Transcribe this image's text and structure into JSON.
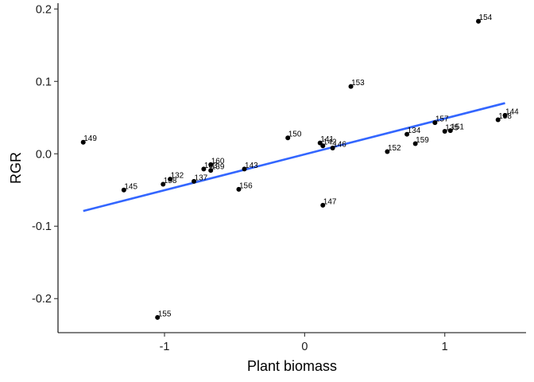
{
  "chart_data": {
    "type": "scatter",
    "title": "",
    "xlabel": "Plant biomass",
    "ylabel": "RGR",
    "xlim": [
      -1.76,
      1.58
    ],
    "ylim": [
      -0.247,
      0.208
    ],
    "x_ticks": [
      -1,
      0,
      1
    ],
    "y_ticks": [
      -0.2,
      -0.1,
      0.0,
      0.1,
      0.2
    ],
    "x_tick_labels": [
      "-1",
      "0",
      "1"
    ],
    "y_tick_labels": [
      "-0.2",
      "-0.1",
      "0.0",
      "0.1",
      "0.2"
    ],
    "grid": false,
    "legend": "none",
    "points": [
      {
        "label": "154",
        "x": 1.24,
        "y": 0.183
      },
      {
        "label": "153",
        "x": 0.33,
        "y": 0.093
      },
      {
        "label": "149",
        "x": -1.58,
        "y": 0.016
      },
      {
        "label": "150",
        "x": -0.12,
        "y": 0.022
      },
      {
        "label": "141",
        "x": 0.11,
        "y": 0.015
      },
      {
        "label": "142",
        "x": 0.13,
        "y": 0.011
      },
      {
        "label": "146",
        "x": 0.2,
        "y": 0.008
      },
      {
        "label": "134",
        "x": 0.73,
        "y": 0.027
      },
      {
        "label": "152",
        "x": 0.59,
        "y": 0.003
      },
      {
        "label": "159",
        "x": 0.79,
        "y": 0.014
      },
      {
        "label": "157",
        "x": 0.93,
        "y": 0.043
      },
      {
        "label": "135",
        "x": 1.0,
        "y": 0.031
      },
      {
        "label": "151",
        "x": 1.04,
        "y": 0.032
      },
      {
        "label": "138",
        "x": 1.38,
        "y": 0.047
      },
      {
        "label": "144",
        "x": 1.43,
        "y": 0.053
      },
      {
        "label": "160",
        "x": -0.67,
        "y": -0.015
      },
      {
        "label": "133",
        "x": -0.72,
        "y": -0.021
      },
      {
        "label": "139",
        "x": -0.67,
        "y": -0.023
      },
      {
        "label": "143",
        "x": -0.43,
        "y": -0.021
      },
      {
        "label": "132",
        "x": -0.96,
        "y": -0.035
      },
      {
        "label": "158",
        "x": -1.01,
        "y": -0.042
      },
      {
        "label": "137",
        "x": -0.79,
        "y": -0.038
      },
      {
        "label": "145",
        "x": -1.29,
        "y": -0.05
      },
      {
        "label": "156",
        "x": -0.47,
        "y": -0.049
      },
      {
        "label": "147",
        "x": 0.13,
        "y": -0.071
      },
      {
        "label": "155",
        "x": -1.05,
        "y": -0.226
      }
    ],
    "fit_line": {
      "x": [
        -1.58,
        1.43
      ],
      "y": [
        -0.079,
        0.07
      ],
      "color": "#3366ff"
    },
    "point_color": "#000000"
  }
}
